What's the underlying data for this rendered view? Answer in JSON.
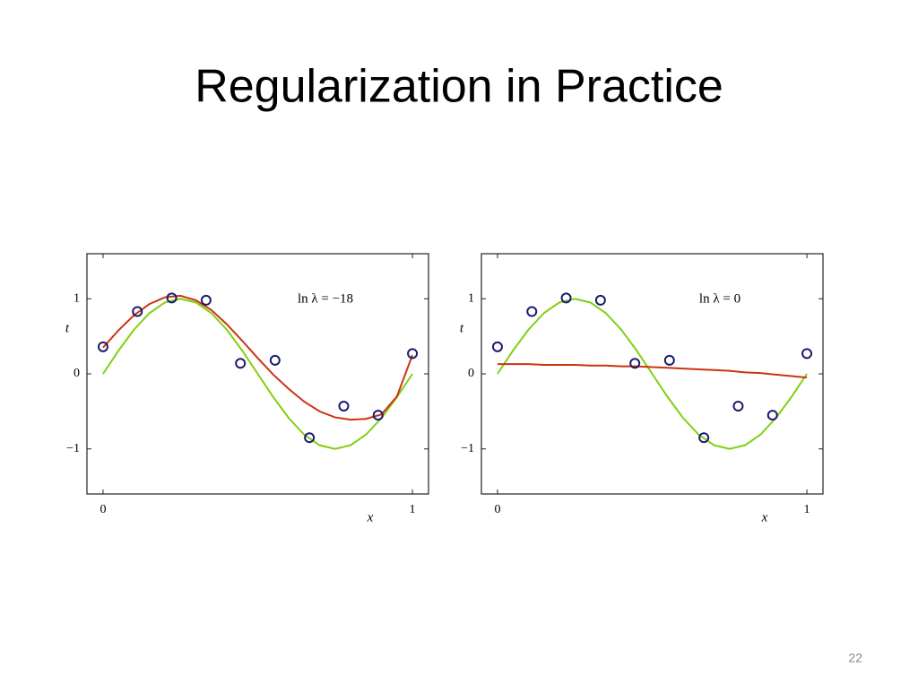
{
  "title": "Regularization in Practice",
  "page_number": "22",
  "chart_data": [
    {
      "type": "line",
      "annotation": "ln λ = −18",
      "xlabel": "x",
      "ylabel": "t",
      "xlim": [
        -0.052,
        1.052
      ],
      "ylim": [
        -1.6,
        1.6
      ],
      "xticks": [
        0,
        1
      ],
      "yticks": [
        {
          "value": -1,
          "label": "−1"
        },
        0,
        1
      ],
      "series": [
        {
          "color": "#80d010",
          "style": "line",
          "x": [
            0,
            0.05,
            0.1,
            0.15,
            0.2,
            0.25,
            0.3,
            0.35,
            0.4,
            0.45,
            0.5,
            0.55,
            0.6,
            0.65,
            0.7,
            0.75,
            0.8,
            0.85,
            0.9,
            0.95,
            1
          ],
          "values": [
            0,
            0.309,
            0.588,
            0.809,
            0.951,
            1,
            0.951,
            0.809,
            0.588,
            0.309,
            0,
            -0.309,
            -0.588,
            -0.809,
            -0.951,
            -1,
            -0.951,
            -0.809,
            -0.588,
            -0.309,
            0
          ]
        },
        {
          "color": "#cc3311",
          "style": "line",
          "x": [
            0,
            0.05,
            0.1,
            0.15,
            0.2,
            0.25,
            0.3,
            0.35,
            0.4,
            0.45,
            0.5,
            0.55,
            0.6,
            0.65,
            0.7,
            0.75,
            0.8,
            0.85,
            0.9,
            0.95,
            1
          ],
          "values": [
            0.35,
            0.58,
            0.78,
            0.93,
            1.02,
            1.04,
            0.98,
            0.85,
            0.66,
            0.44,
            0.21,
            -0.01,
            -0.2,
            -0.37,
            -0.5,
            -0.58,
            -0.61,
            -0.6,
            -0.54,
            -0.3,
            0.25
          ]
        },
        {
          "color": "#1a1a70",
          "style": "markers",
          "x": [
            0,
            0.111,
            0.222,
            0.333,
            0.444,
            0.556,
            0.667,
            0.778,
            0.889,
            1
          ],
          "values": [
            0.36,
            0.83,
            1.01,
            0.98,
            0.14,
            0.18,
            -0.85,
            -0.43,
            -0.55,
            0.27
          ]
        }
      ]
    },
    {
      "type": "line",
      "annotation": "ln λ = 0",
      "xlabel": "x",
      "ylabel": "t",
      "xlim": [
        -0.052,
        1.052
      ],
      "ylim": [
        -1.6,
        1.6
      ],
      "xticks": [
        0,
        1
      ],
      "yticks": [
        {
          "value": -1,
          "label": "−1"
        },
        0,
        1
      ],
      "series": [
        {
          "color": "#80d010",
          "style": "line",
          "x": [
            0,
            0.05,
            0.1,
            0.15,
            0.2,
            0.25,
            0.3,
            0.35,
            0.4,
            0.45,
            0.5,
            0.55,
            0.6,
            0.65,
            0.7,
            0.75,
            0.8,
            0.85,
            0.9,
            0.95,
            1
          ],
          "values": [
            0,
            0.309,
            0.588,
            0.809,
            0.951,
            1,
            0.951,
            0.809,
            0.588,
            0.309,
            0,
            -0.309,
            -0.588,
            -0.809,
            -0.951,
            -1,
            -0.951,
            -0.809,
            -0.588,
            -0.309,
            0
          ]
        },
        {
          "color": "#cc3311",
          "style": "line",
          "x": [
            0,
            0.05,
            0.1,
            0.15,
            0.2,
            0.25,
            0.3,
            0.35,
            0.4,
            0.45,
            0.5,
            0.55,
            0.6,
            0.65,
            0.7,
            0.75,
            0.8,
            0.85,
            0.9,
            0.95,
            1
          ],
          "values": [
            0.13,
            0.13,
            0.13,
            0.12,
            0.12,
            0.12,
            0.11,
            0.11,
            0.1,
            0.1,
            0.09,
            0.08,
            0.07,
            0.06,
            0.05,
            0.04,
            0.02,
            0.01,
            -0.01,
            -0.03,
            -0.05
          ]
        },
        {
          "color": "#1a1a70",
          "style": "markers",
          "x": [
            0,
            0.111,
            0.222,
            0.333,
            0.444,
            0.556,
            0.667,
            0.778,
            0.889,
            1
          ],
          "values": [
            0.36,
            0.83,
            1.01,
            0.98,
            0.14,
            0.18,
            -0.85,
            -0.43,
            -0.55,
            0.27
          ]
        }
      ]
    }
  ]
}
